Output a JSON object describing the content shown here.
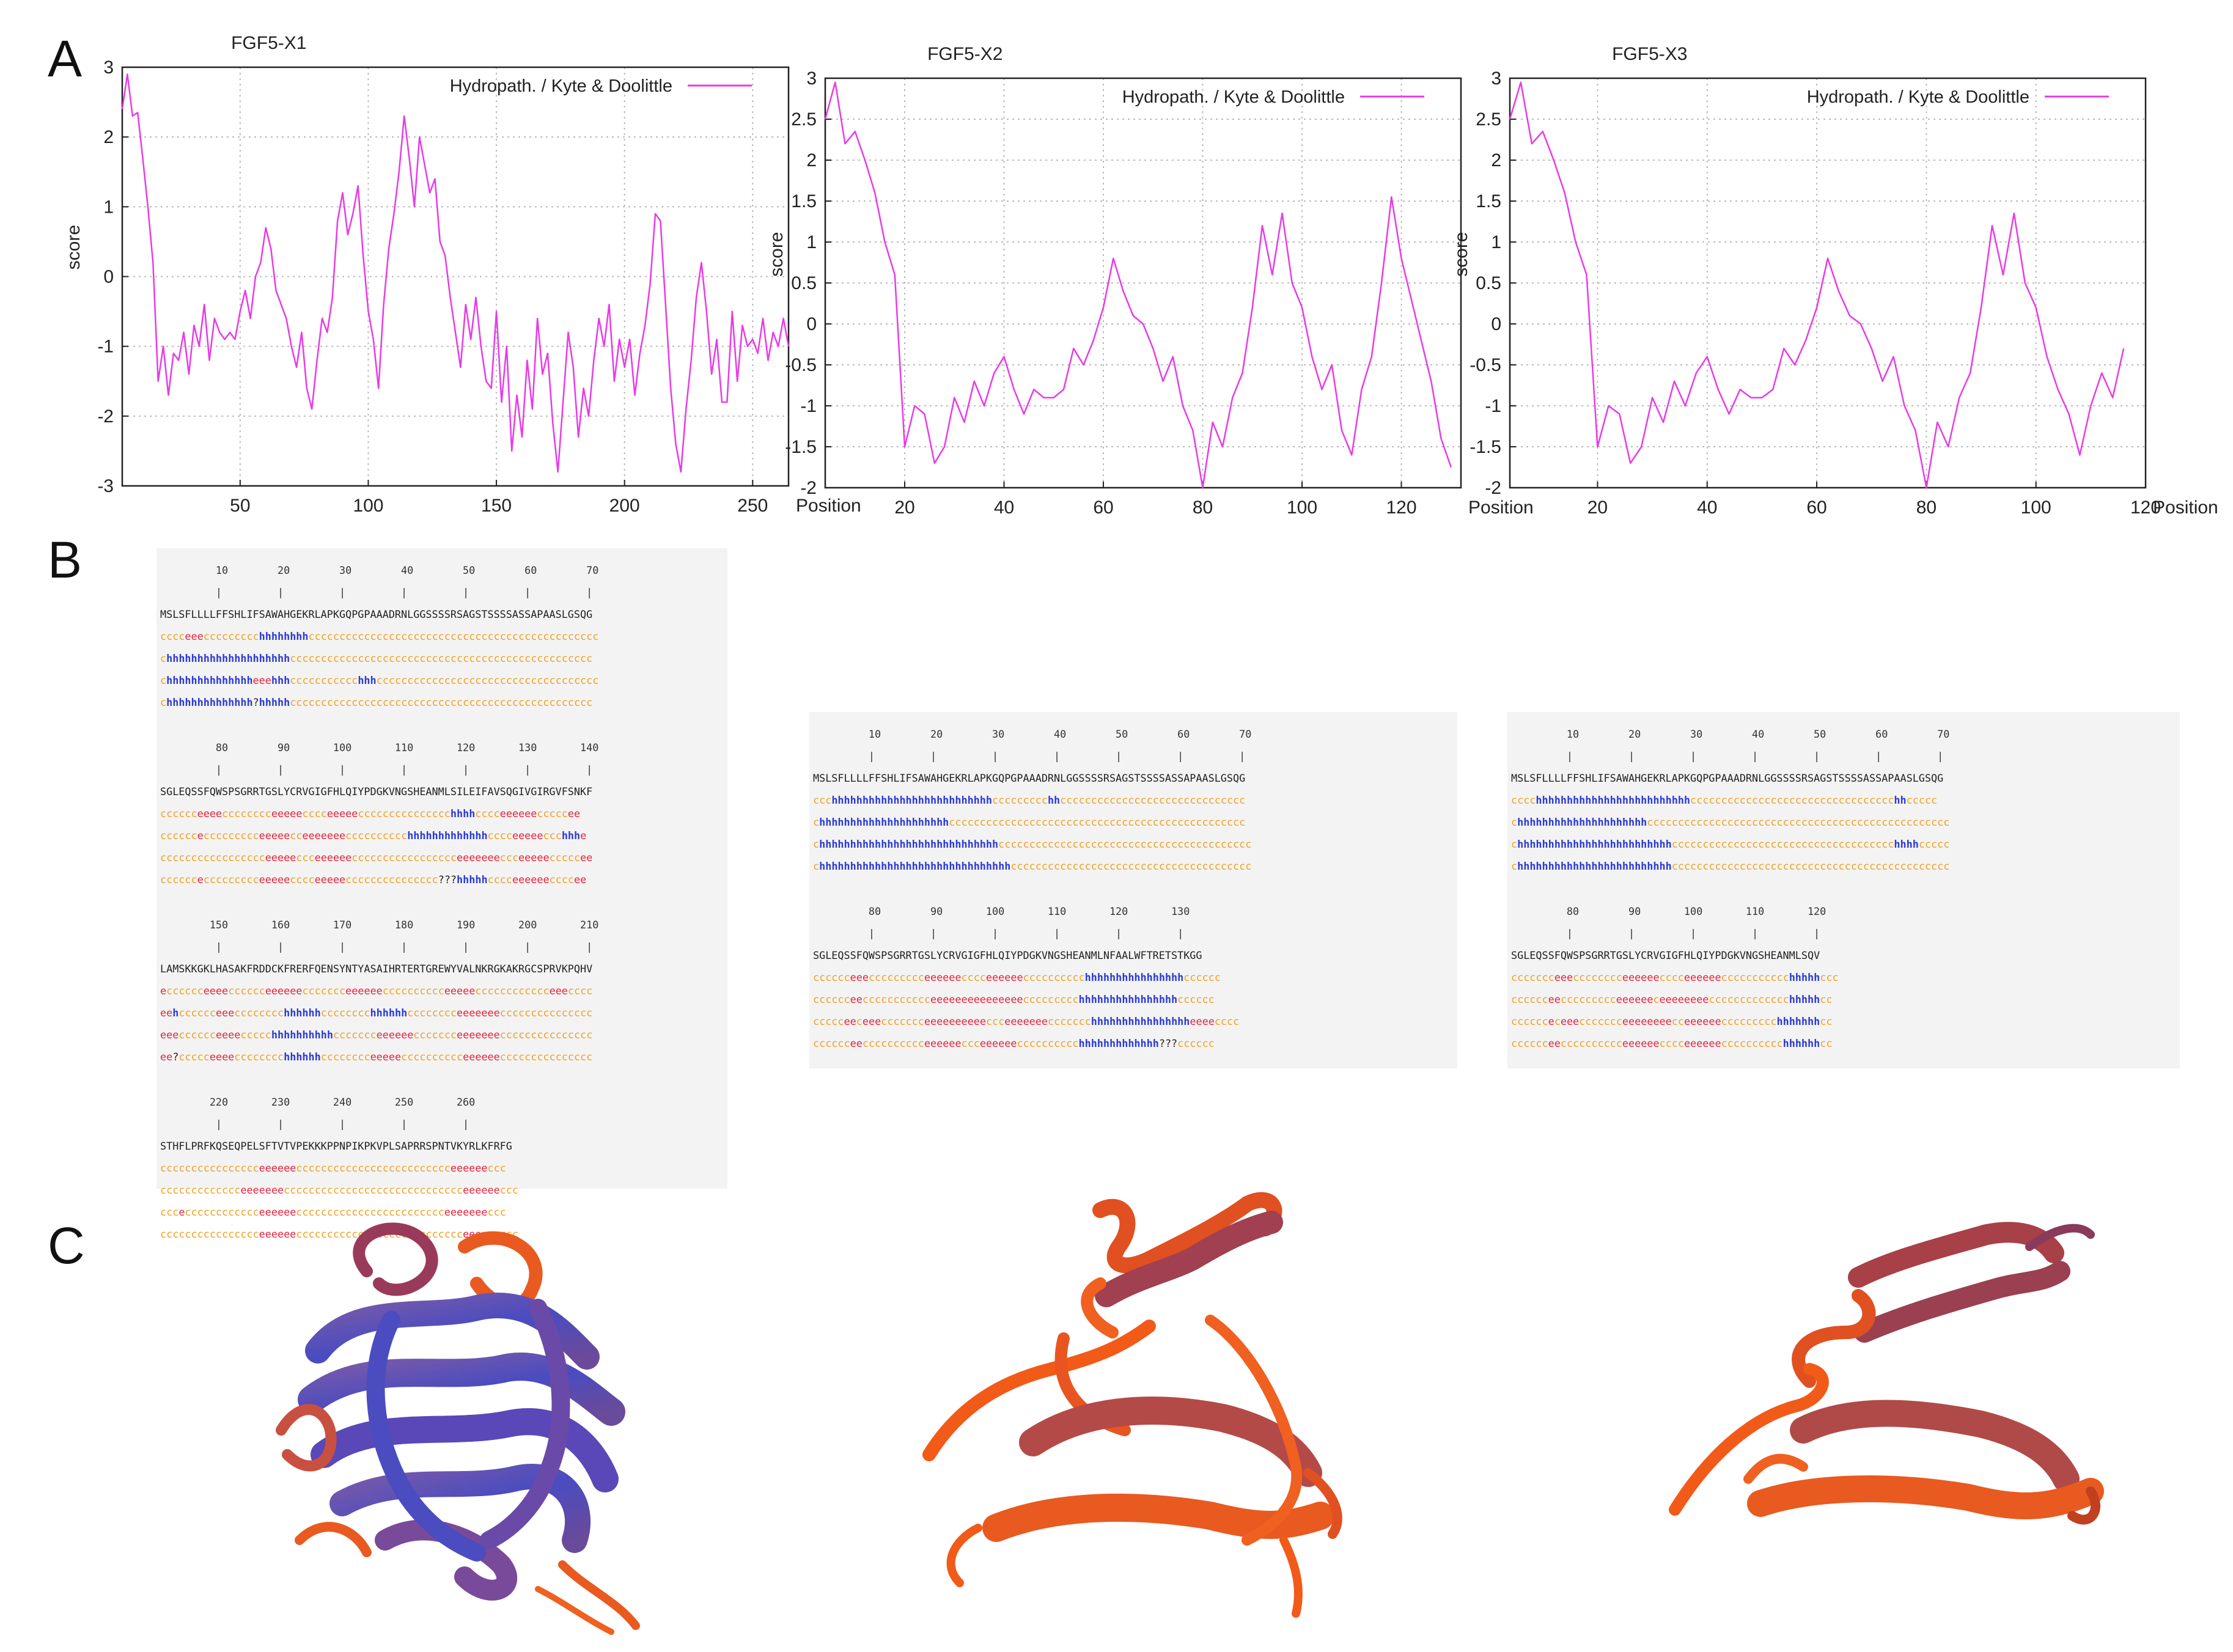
{
  "panels": {
    "a": "A",
    "b": "B",
    "c": "C"
  },
  "colors": {
    "line": "#e83ae8",
    "coil": "#f0a020",
    "strand": "#e8203a",
    "helix": "#2a3ad8",
    "grid": "#bbbbbb",
    "seq_bg": "#f3f3f3"
  },
  "chart_data": [
    {
      "type": "line",
      "title": "FGF5-X1",
      "legend": "Hydropath. / Kyte & Doolittle",
      "legend_position": "top-right",
      "xlabel": "Position",
      "ylabel": "score",
      "xlim": [
        4,
        264
      ],
      "ylim": [
        -3,
        3
      ],
      "xticks": [
        50,
        100,
        150,
        200,
        250
      ],
      "xtick_labels": [
        "50",
        "100",
        "150",
        "200",
        "250"
      ],
      "yticks": [
        -3,
        -2,
        -1,
        0,
        1,
        2,
        3
      ],
      "ytick_labels": [
        "-3",
        "-2",
        "-1",
        "0",
        "1",
        "2",
        "3"
      ],
      "x": [
        4,
        6,
        8,
        10,
        12,
        14,
        16,
        18,
        20,
        22,
        24,
        26,
        28,
        30,
        32,
        34,
        36,
        38,
        40,
        42,
        44,
        46,
        48,
        50,
        52,
        54,
        56,
        58,
        60,
        62,
        64,
        66,
        68,
        70,
        72,
        74,
        76,
        78,
        80,
        82,
        84,
        86,
        88,
        90,
        92,
        94,
        96,
        98,
        100,
        102,
        104,
        106,
        108,
        110,
        112,
        114,
        116,
        118,
        120,
        122,
        124,
        126,
        128,
        130,
        132,
        134,
        136,
        138,
        140,
        142,
        144,
        146,
        148,
        150,
        152,
        154,
        156,
        158,
        160,
        162,
        164,
        166,
        168,
        170,
        172,
        174,
        176,
        178,
        180,
        182,
        184,
        186,
        188,
        190,
        192,
        194,
        196,
        198,
        200,
        202,
        204,
        206,
        208,
        210,
        212,
        214,
        216,
        218,
        220,
        222,
        224,
        226,
        228,
        230,
        232,
        234,
        236,
        238,
        240,
        242,
        244,
        246,
        248,
        250,
        252,
        254,
        256,
        258,
        260,
        262,
        264
      ],
      "y": [
        2.4,
        2.9,
        2.3,
        2.35,
        1.7,
        1.0,
        0.2,
        -1.5,
        -1.0,
        -1.7,
        -1.1,
        -1.2,
        -0.8,
        -1.4,
        -0.7,
        -1.0,
        -0.4,
        -1.2,
        -0.6,
        -0.8,
        -0.9,
        -0.8,
        -0.9,
        -0.5,
        -0.2,
        -0.6,
        0.0,
        0.2,
        0.7,
        0.4,
        -0.2,
        -0.4,
        -0.6,
        -1.0,
        -1.3,
        -0.8,
        -1.6,
        -1.9,
        -1.2,
        -0.6,
        -0.8,
        -0.3,
        0.8,
        1.2,
        0.6,
        0.9,
        1.3,
        0.3,
        -0.5,
        -0.9,
        -1.6,
        -0.4,
        0.4,
        0.9,
        1.5,
        2.3,
        1.7,
        1.0,
        2.0,
        1.6,
        1.2,
        1.4,
        0.5,
        0.3,
        -0.3,
        -0.8,
        -1.3,
        -0.4,
        -0.9,
        -0.3,
        -1.0,
        -1.5,
        -1.6,
        -0.5,
        -1.8,
        -1.0,
        -2.5,
        -1.7,
        -2.3,
        -1.2,
        -1.9,
        -0.6,
        -1.4,
        -1.1,
        -2.1,
        -2.8,
        -1.8,
        -0.8,
        -1.3,
        -2.3,
        -1.6,
        -2.0,
        -1.2,
        -0.6,
        -1.0,
        -0.4,
        -1.5,
        -0.9,
        -1.3,
        -0.9,
        -1.7,
        -1.1,
        -0.7,
        -0.1,
        0.9,
        0.8,
        -0.4,
        -1.6,
        -2.4,
        -2.8,
        -1.9,
        -1.2,
        -0.3,
        0.2,
        -0.5,
        -1.4,
        -0.9,
        -1.8,
        -1.8,
        -0.5,
        -1.5,
        -0.7,
        -1.0,
        -0.9,
        -1.1,
        -0.6,
        -1.2,
        -0.8,
        -1.0,
        -0.6,
        -1.0
      ]
    },
    {
      "type": "line",
      "title": "FGF5-X2",
      "legend": "Hydropath. / Kyte & Doolittle",
      "legend_position": "top-right",
      "xlabel": "Position",
      "ylabel": "score",
      "xlim": [
        4,
        132
      ],
      "ylim": [
        -2,
        3
      ],
      "xticks": [
        20,
        40,
        60,
        80,
        100,
        120
      ],
      "xtick_labels": [
        "20",
        "40",
        "60",
        "80",
        "100",
        "120"
      ],
      "yticks": [
        -2,
        -1.5,
        -1,
        -0.5,
        0,
        0.5,
        1,
        1.5,
        2,
        2.5,
        3
      ],
      "ytick_labels": [
        "-2",
        "-1.5",
        "-1",
        "-0.5",
        "0",
        "0.5",
        "1",
        "1.5",
        "2",
        "2.5",
        "3"
      ],
      "x": [
        4,
        6,
        8,
        10,
        12,
        14,
        16,
        18,
        20,
        22,
        24,
        26,
        28,
        30,
        32,
        34,
        36,
        38,
        40,
        42,
        44,
        46,
        48,
        50,
        52,
        54,
        56,
        58,
        60,
        62,
        64,
        66,
        68,
        70,
        72,
        74,
        76,
        78,
        80,
        82,
        84,
        86,
        88,
        90,
        92,
        94,
        96,
        98,
        100,
        102,
        104,
        106,
        108,
        110,
        112,
        114,
        116,
        118,
        120,
        122,
        124,
        126,
        128,
        130
      ],
      "y": [
        2.5,
        2.95,
        2.2,
        2.35,
        2.0,
        1.6,
        1.0,
        0.6,
        -1.5,
        -1.0,
        -1.1,
        -1.7,
        -1.5,
        -0.9,
        -1.2,
        -0.7,
        -1.0,
        -0.6,
        -0.4,
        -0.8,
        -1.1,
        -0.8,
        -0.9,
        -0.9,
        -0.8,
        -0.3,
        -0.5,
        -0.2,
        0.2,
        0.8,
        0.4,
        0.1,
        0.0,
        -0.3,
        -0.7,
        -0.4,
        -1.0,
        -1.3,
        -2.0,
        -1.2,
        -1.5,
        -0.9,
        -0.6,
        0.2,
        1.2,
        0.6,
        1.35,
        0.5,
        0.2,
        -0.4,
        -0.8,
        -0.5,
        -1.3,
        -1.6,
        -0.8,
        -0.4,
        0.5,
        1.55,
        0.8,
        0.3,
        -0.2,
        -0.7,
        -1.4,
        -1.75
      ]
    },
    {
      "type": "line",
      "title": "FGF5-X3",
      "legend": "Hydropath. / Kyte & Doolittle",
      "legend_position": "top-right",
      "xlabel": "Position",
      "ylabel": "score",
      "xlim": [
        4,
        120
      ],
      "ylim": [
        -2,
        3
      ],
      "xticks": [
        20,
        40,
        60,
        80,
        100,
        120
      ],
      "xtick_labels": [
        "20",
        "40",
        "60",
        "80",
        "100",
        "120"
      ],
      "yticks": [
        -2,
        -1.5,
        -1,
        -0.5,
        0,
        0.5,
        1,
        1.5,
        2,
        2.5,
        3
      ],
      "ytick_labels": [
        "-2",
        "-1.5",
        "-1",
        "-0.5",
        "0",
        "0.5",
        "1",
        "1.5",
        "2",
        "2.5",
        "3"
      ],
      "x": [
        4,
        6,
        8,
        10,
        12,
        14,
        16,
        18,
        20,
        22,
        24,
        26,
        28,
        30,
        32,
        34,
        36,
        38,
        40,
        42,
        44,
        46,
        48,
        50,
        52,
        54,
        56,
        58,
        60,
        62,
        64,
        66,
        68,
        70,
        72,
        74,
        76,
        78,
        80,
        82,
        84,
        86,
        88,
        90,
        92,
        94,
        96,
        98,
        100,
        102,
        104,
        106,
        108,
        110,
        112,
        114,
        116
      ],
      "y": [
        2.5,
        2.95,
        2.2,
        2.35,
        2.0,
        1.6,
        1.0,
        0.6,
        -1.5,
        -1.0,
        -1.1,
        -1.7,
        -1.5,
        -0.9,
        -1.2,
        -0.7,
        -1.0,
        -0.6,
        -0.4,
        -0.8,
        -1.1,
        -0.8,
        -0.9,
        -0.9,
        -0.8,
        -0.3,
        -0.5,
        -0.2,
        0.2,
        0.8,
        0.4,
        0.1,
        0.0,
        -0.3,
        -0.7,
        -0.4,
        -1.0,
        -1.3,
        -2.0,
        -1.2,
        -1.5,
        -0.9,
        -0.6,
        0.2,
        1.2,
        0.6,
        1.35,
        0.5,
        0.2,
        -0.4,
        -0.8,
        -1.1,
        -1.6,
        -1.0,
        -0.6,
        -0.9,
        -0.3
      ]
    }
  ],
  "sequence_panels": [
    {
      "blocks": [
        {
          "numbers": "         10        20        30        40        50        60        70",
          "ticks": "         |         |         |         |         |         |         |",
          "sequence": "MSLSFLLLLFFSHLIFSAWAHGEKRLAPKGQPGPAAADRNLGGSSSSRSAGSTSSSSASSAPAASLGSQG",
          "predictions": [
            "cccceeeccccccccchhhhhhhhccccccccccccccccccccccccccccccccccccccccccccccc",
            "chhhhhhhhhhhhhhhhhhhhccccccccccccccccccccccccccccccccccccccccccccccccc",
            "chhhhhhhhhhhhhheeehhhccccccccccchhhcccccccccccccccccccccccccccccccccccc",
            "chhhhhhhhhhhhhh?hhhhhccccccccccccccccccccccccccccccccccccccccccccccccc"
          ]
        },
        {
          "numbers": "         80        90       100       110       120       130       140",
          "ticks": "         |         |         |         |         |         |         |",
          "sequence": "SGLEQSSFQWSPSGRRTGSLYCRVGIGFHLQIYPDGKVNGSHEANMLSILEIFAVSQGIVGIRGVFSNKF",
          "predictions": [
            "cccccceeeecccccccceeeeecccceeeeeccccccccccccccchhhhcccceeeeeecccccee",
            "cccccceccccccccceeeeecceeeeeeecccccccccchhhhhhhhhhhhhcccceeeeeccchhhe",
            "ccccccccccccccccceeeeeccceeeeeeccccccccccccccccceeeeeeeccceeeeecccccee",
            "cccccceccccccccceeeeecccceeeeeccccccccccccccc???hhhhhcccceeeeeeccccee"
          ]
        },
        {
          "numbers": "        150       160       170       180       190       200       210",
          "ticks": "         |         |         |         |         |         |         |",
          "sequence": "LAMSKKGKLHASAKFRDDCKFRERFQENSYNTYASAIHRTERTGREWYVALNKRGKAKRGCSPRVKPQHV",
          "predictions": [
            "ecccccceeeecccccceeeeeeccccccceeeeeecccccccccceeeeecccccccccccceeecccc",
            "eehcccccceeecccccccchhhhhhcccccccchhhhhhcccccccceeeeeeeccccccccccccccc",
            "eeecccccceeeeccccchhhhhhhhhhccccccceeeeeeccccccceeeeeeeccccccccccccccc",
            "ee?ccccceeeecccccccchhhhhhcccccccceeeeecccccccccceeeeeeccccccccccccccc"
          ]
        },
        {
          "numbers": "        220       230       240       250       260",
          "ticks": "         |         |         |         |         |",
          "sequence": "STHFLPRFKQSEQPELSFTVTVPEKKKPPNPIKPKVPLSAPRRSPNTVKYRLKFRFG",
          "predictions": [
            "cccccccccccccccceeeeeeccccccccccccccccccccccccceeeeeeccc",
            "ccccccccccccceeeeeeeccccccccccccccccccccccccccccceeeeeeccc",
            "cccecccccccccccceeeeeecccccccccccccccccccccccceeeeeeeccc",
            "cccccccccccccccceeeeeeccccccccccccccccccccccccccceeeeeeccc"
          ]
        }
      ]
    },
    {
      "blocks": [
        {
          "numbers": "         10        20        30        40        50        60        70",
          "ticks": "         |         |         |         |         |         |         |",
          "sequence": "MSLSFLLLLFFSHLIFSAWAHGEKRLAPKGQPGPAAADRNLGGSSSSRSAGSTSSSSASSAPAASLGSQG",
          "predictions": [
            "ccchhhhhhhhhhhhhhhhhhhhhhhhhhccccccccchhcccccccccccccccccccccccccccccc",
            "chhhhhhhhhhhhhhhhhhhhhcccccccccccccccccccccccccccccccccccccccccccccccc",
            "chhhhhhhhhhhhhhhhhhhhhhhhhhhhhccccccccccccccccccccccccccccccccccccccccc",
            "chhhhhhhhhhhhhhhhhhhhhhhhhhhhhhhccccccccccccccccccccccccccccccccccccccc"
          ]
        },
        {
          "numbers": "         80        90       100       110       120       130",
          "ticks": "         |         |         |         |         |         |",
          "sequence": "SGLEQSSFQWSPSGRRTGSLYCRVGIGFHLQIYPDGKVNGSHEANMLNFAALWFTRETSTKGG",
          "predictions": [
            "cccccceeeccccccccceeeeeecccceeeeeecccccccccchhhhhhhhhhhhhhhhcccccc",
            "cccccceeccccccccccceeeeeeeeeeeeeeeccccccccchhhhhhhhhhhhhhhhcccccc",
            "ccccceeceeeccccccceeeeeeeeeeccceeeeeeeccccccchhhhhhhhhhhhhhhheeeecccc",
            "cccccceecccccccccceeeeeeccceeeeeecccccccccchhhhhhhhhhhhh???cccccc"
          ]
        }
      ]
    },
    {
      "blocks": [
        {
          "numbers": "         10        20        30        40        50        60        70",
          "ticks": "         |         |         |         |         |         |         |",
          "sequence": "MSLSFLLLLFFSHLIFSAWAHGEKRLAPKGQPGPAAADRNLGGSSSSRSAGSTSSSSASSAPAASLGSQG",
          "predictions": [
            "cccchhhhhhhhhhhhhhhhhhhhhhhhhccccccccccccccccccccccccccccccccchhccccc",
            "chhhhhhhhhhhhhhhhhhhhhccccccccccccccccccccccccccccccccccccccccccccccccc",
            "chhhhhhhhhhhhhhhhhhhhhhhhhcccccccccccccccccccccccccccccccccccchhhhccccc",
            "chhhhhhhhhhhhhhhhhhhhhhhhhccccccccccccccccccccccccccccccccccccccccccccc"
          ]
        },
        {
          "numbers": "         80        90       100       110       120",
          "ticks": "         |         |         |         |         |",
          "sequence": "SGLEQSSFQWSPSGRRTGSLYCRVGIGFHLQIYPDGKVNGSHEANMLSQV",
          "predictions": [
            "ccccccceeecccccccceeeeeecccceeeeeeccccccccccchhhhhccc",
            "cccccceeccccccccceeeeeeceeeeeeeeccccccccccccchhhhhcc",
            "cccccceceeeccccccceeeeeeeecceeeeeeccccccccchhhhhhhcc",
            "cccccceecccccccccceeeeeecccceeeeeecccccccccchhhhhhcc"
          ]
        }
      ]
    }
  ]
}
